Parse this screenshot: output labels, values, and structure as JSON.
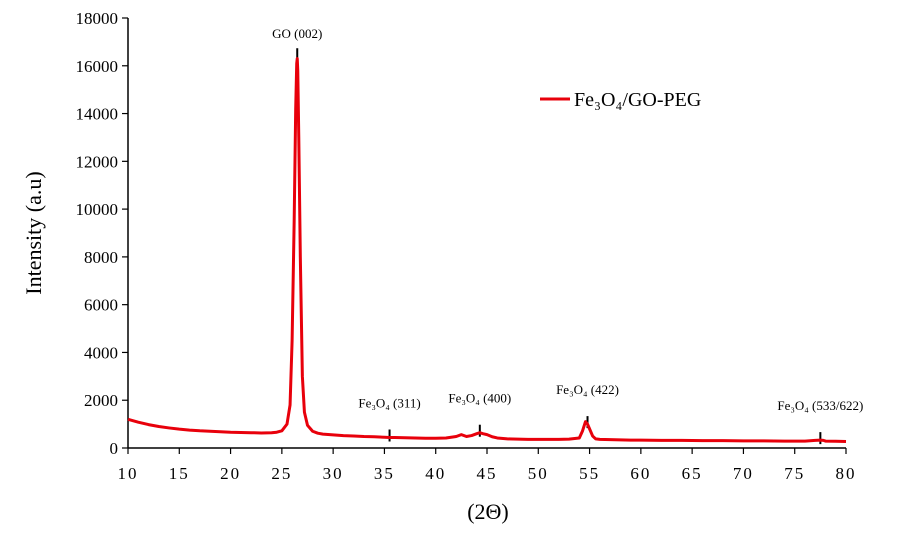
{
  "chart_data": {
    "type": "line",
    "xlabel": "(2Θ)",
    "ylabel": "Intensity (a.u)",
    "xlim": [
      10,
      80
    ],
    "ylim": [
      0,
      18000
    ],
    "xticks": [
      10,
      15,
      20,
      25,
      30,
      35,
      40,
      45,
      50,
      55,
      60,
      65,
      70,
      75,
      80
    ],
    "yticks": [
      0,
      2000,
      4000,
      6000,
      8000,
      10000,
      12000,
      14000,
      16000,
      18000
    ],
    "grid": false,
    "legend_position": "top-right",
    "colors": {
      "series": "#e8000b",
      "axis": "#000000"
    },
    "series": [
      {
        "name": "Fe₃O₄/GO-PEG",
        "x": [
          10,
          11,
          12,
          13,
          14,
          15,
          16,
          17,
          18,
          19,
          20,
          21,
          22,
          23,
          24,
          24.5,
          25,
          25.5,
          25.8,
          26,
          26.2,
          26.35,
          26.45,
          26.5,
          26.55,
          26.65,
          26.8,
          27,
          27.2,
          27.5,
          28,
          28.5,
          29,
          30,
          31,
          32,
          33,
          34,
          35,
          35.5,
          36,
          37,
          38,
          39,
          40,
          41,
          42,
          42.5,
          43,
          43.5,
          44,
          44.3,
          44.6,
          45,
          45.5,
          46,
          47,
          48,
          49,
          50,
          51,
          52,
          53,
          54,
          54.3,
          54.6,
          54.8,
          55,
          55.3,
          55.6,
          56,
          57,
          58,
          59,
          60,
          62,
          64,
          66,
          68,
          70,
          72,
          74,
          76,
          77,
          77.5,
          77.8,
          78,
          79,
          80
        ],
        "y": [
          1200,
          1080,
          980,
          900,
          840,
          790,
          750,
          720,
          700,
          680,
          660,
          650,
          640,
          630,
          640,
          660,
          720,
          1000,
          1800,
          4500,
          9500,
          14200,
          16100,
          16300,
          15800,
          13000,
          8000,
          3000,
          1500,
          950,
          700,
          620,
          580,
          550,
          520,
          500,
          480,
          470,
          450,
          440,
          440,
          430,
          420,
          410,
          410,
          420,
          480,
          560,
          480,
          520,
          600,
          640,
          600,
          560,
          470,
          420,
          380,
          370,
          360,
          360,
          360,
          360,
          370,
          420,
          700,
          1100,
          1000,
          800,
          500,
          380,
          360,
          350,
          340,
          330,
          330,
          320,
          320,
          310,
          310,
          300,
          300,
          290,
          290,
          320,
          330,
          320,
          290,
          280,
          270
        ]
      }
    ],
    "annotations": [
      {
        "text": "GO (002)",
        "x": 26.5,
        "y": 16400
      },
      {
        "text": "Fe₃O₄ (311)",
        "x": 35.5,
        "y": 440
      },
      {
        "text": "Fe₃O₄ (400)",
        "x": 44.3,
        "y": 640
      },
      {
        "text": "Fe₃O₄ (422)",
        "x": 54.8,
        "y": 1000
      },
      {
        "text": "Fe₃O₄ (533/622)",
        "x": 77.5,
        "y": 330
      }
    ]
  }
}
